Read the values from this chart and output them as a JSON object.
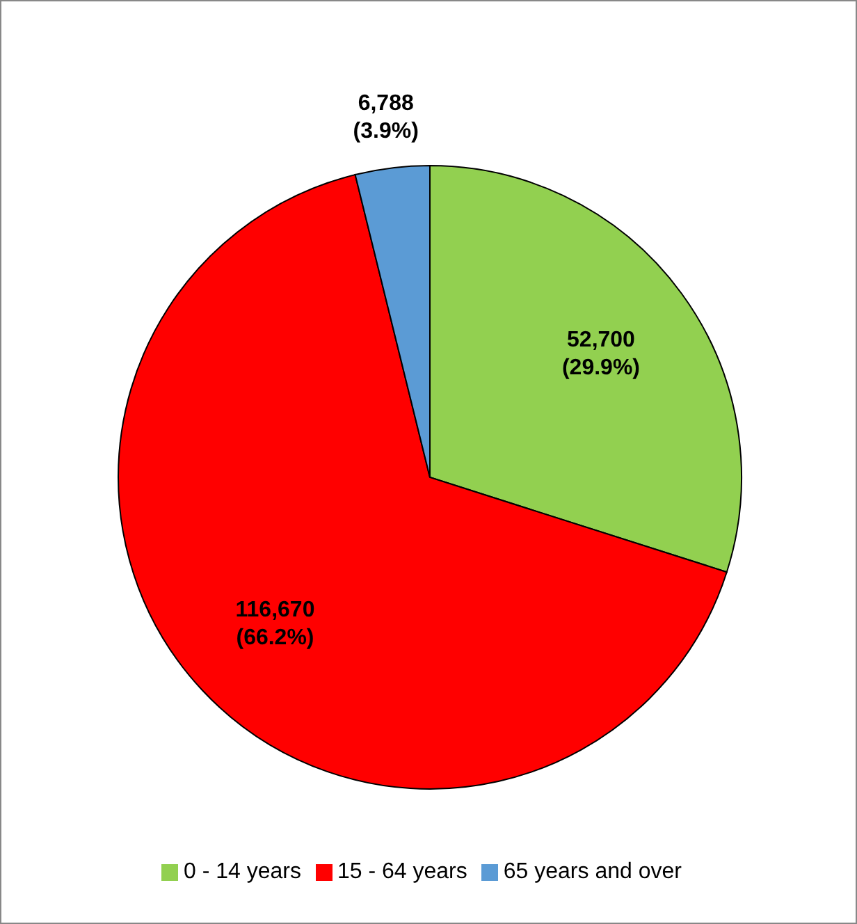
{
  "chart_data": {
    "type": "pie",
    "categories": [
      "0 - 14 years",
      "15 - 64 years",
      "65 years and over"
    ],
    "values": [
      52700,
      116670,
      6788
    ],
    "colors": [
      "#92d050",
      "#ff0000",
      "#5b9bd5"
    ],
    "value_labels": [
      "52,700\n(29.9%)",
      "116,670\n(66.2%)",
      "6,788\n(3.9%)"
    ],
    "legend": "bottom"
  }
}
